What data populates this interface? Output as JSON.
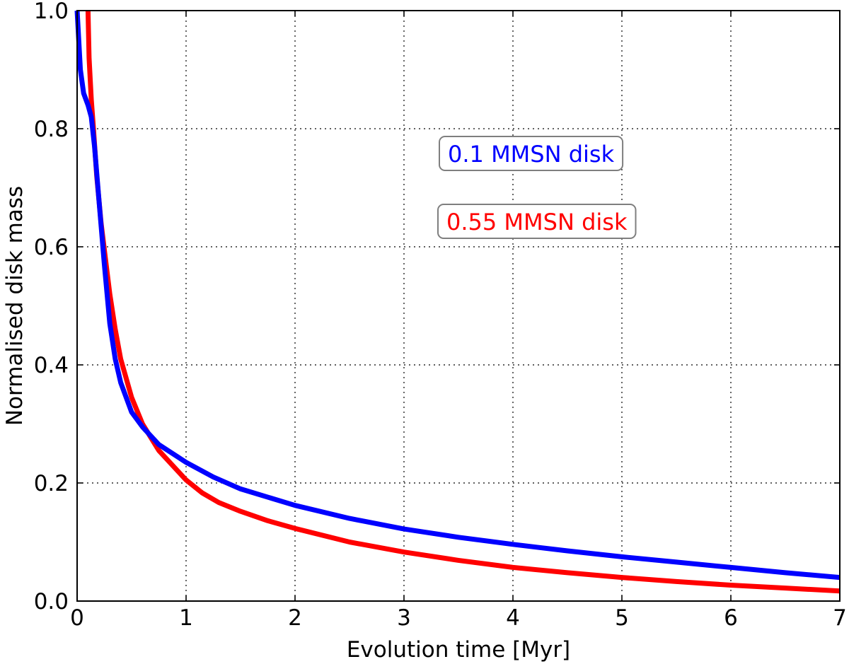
{
  "chart_data": {
    "type": "line",
    "title": "",
    "xlabel": "Evolution time [Myr]",
    "ylabel": "Normalised disk mass",
    "xlim": [
      0,
      7
    ],
    "ylim": [
      0.0,
      1.0
    ],
    "grid": true,
    "xticks": [
      0,
      1,
      2,
      3,
      4,
      5,
      6,
      7
    ],
    "yticks": [
      0.0,
      0.2,
      0.4,
      0.6,
      0.8,
      1.0
    ],
    "xtick_labels": [
      "0",
      "1",
      "2",
      "3",
      "4",
      "5",
      "6",
      "7"
    ],
    "ytick_labels": [
      "0.0",
      "0.2",
      "0.4",
      "0.6",
      "0.8",
      "1.0"
    ],
    "series": [
      {
        "name": "0.1 MMSN disk",
        "color": "#0000ff",
        "x": [
          0.0,
          0.03,
          0.06,
          0.1,
          0.13,
          0.16,
          0.2,
          0.25,
          0.3,
          0.35,
          0.4,
          0.5,
          0.6,
          0.75,
          1.0,
          1.25,
          1.5,
          2.0,
          2.5,
          3.0,
          3.5,
          4.0,
          4.5,
          5.0,
          5.5,
          6.0,
          6.5,
          7.0
        ],
        "y": [
          1.0,
          0.9,
          0.86,
          0.84,
          0.82,
          0.77,
          0.68,
          0.57,
          0.47,
          0.41,
          0.37,
          0.32,
          0.295,
          0.265,
          0.235,
          0.21,
          0.19,
          0.162,
          0.14,
          0.122,
          0.108,
          0.096,
          0.085,
          0.075,
          0.066,
          0.057,
          0.048,
          0.04
        ]
      },
      {
        "name": "0.55 MMSN disk",
        "color": "#ff0000",
        "x": [
          0.1,
          0.11,
          0.13,
          0.15,
          0.18,
          0.22,
          0.26,
          0.3,
          0.35,
          0.4,
          0.5,
          0.6,
          0.75,
          0.9,
          1.0,
          1.15,
          1.3,
          1.5,
          1.75,
          2.0,
          2.5,
          3.0,
          3.5,
          4.0,
          4.5,
          5.0,
          5.5,
          6.0,
          6.5,
          7.0
        ],
        "y": [
          1.0,
          0.92,
          0.85,
          0.8,
          0.72,
          0.64,
          0.58,
          0.52,
          0.46,
          0.41,
          0.345,
          0.3,
          0.255,
          0.225,
          0.205,
          0.183,
          0.167,
          0.152,
          0.136,
          0.123,
          0.1,
          0.083,
          0.069,
          0.057,
          0.048,
          0.04,
          0.033,
          0.027,
          0.022,
          0.017
        ]
      }
    ],
    "legend": {
      "placement": "upper-right",
      "entries": [
        "0.1 MMSN disk",
        "0.55 MMSN disk"
      ]
    }
  }
}
